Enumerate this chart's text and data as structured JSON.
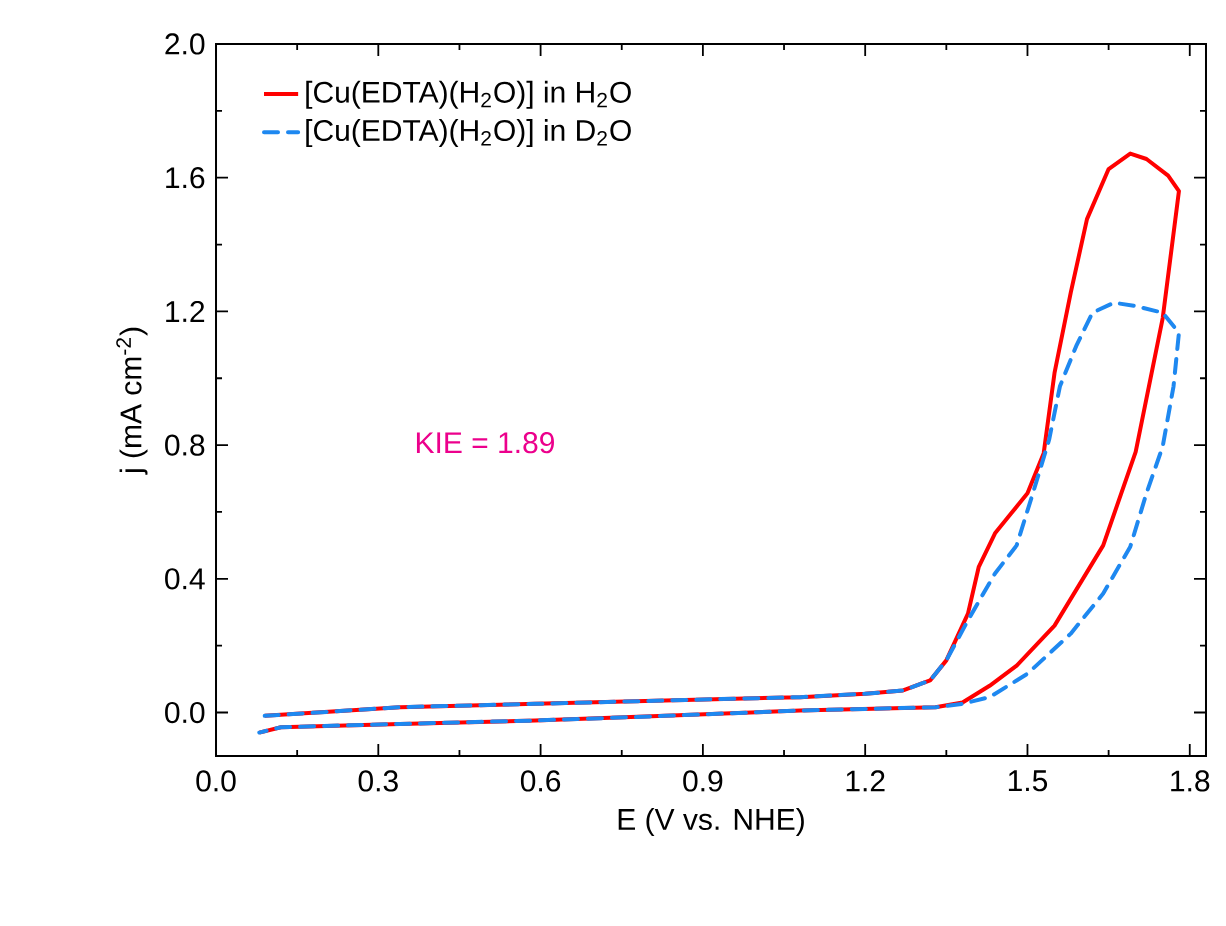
{
  "chart_data": {
    "type": "line",
    "xlabel": "E (V vs. NHE)",
    "ylabel": "j (mA cm$^{-2}$)",
    "xlim": [
      0,
      1.83
    ],
    "ylim": [
      -0.13,
      2.0
    ],
    "xticks": [
      {
        "value": 0,
        "label": "0.0"
      },
      0.3,
      0.6,
      0.9,
      1.2,
      1.5,
      1.8
    ],
    "yticks": [
      {
        "value": 0,
        "label": "0.0"
      },
      0.4,
      0.8,
      1.2,
      1.6,
      {
        "value": 2,
        "label": "2.0"
      }
    ],
    "legend": "top left",
    "grid": false,
    "annotations": [
      "KIE = 1.89"
    ],
    "series": [
      {
        "name": "[Cu(EDTA)(H$_{2}$O)] in H$_{2}$O",
        "color": "#ff0000",
        "line_style": "solid",
        "x": [
          0.09,
          0.34,
          0.59,
          0.83,
          1.08,
          1.2,
          1.27,
          1.32,
          1.35,
          1.39,
          1.41,
          1.44,
          1.47,
          1.5,
          1.53,
          1.55,
          1.58,
          1.61,
          1.65,
          1.69,
          1.72,
          1.76,
          1.78,
          1.75,
          1.7,
          1.64,
          1.55,
          1.48,
          1.43,
          1.38,
          1.33,
          1.08,
          0.83,
          0.59,
          0.34,
          0.12,
          0.08
        ],
        "values": [
          -0.01,
          0.016,
          0.026,
          0.036,
          0.046,
          0.056,
          0.066,
          0.096,
          0.156,
          0.296,
          0.436,
          0.536,
          0.596,
          0.656,
          0.776,
          1.016,
          1.256,
          1.476,
          1.626,
          1.672,
          1.656,
          1.606,
          1.56,
          1.18,
          0.78,
          0.5,
          0.26,
          0.14,
          0.08,
          0.03,
          0.016,
          0.006,
          -0.01,
          -0.024,
          -0.034,
          -0.044,
          -0.06
        ]
      },
      {
        "name": "[Cu(EDTA)(H$_{2}$O)] in D$_{2}$O",
        "color": "#1e88f0",
        "line_style": "dashed",
        "x": [
          0.09,
          0.34,
          0.59,
          0.83,
          1.08,
          1.2,
          1.27,
          1.32,
          1.35,
          1.39,
          1.44,
          1.48,
          1.51,
          1.54,
          1.56,
          1.59,
          1.62,
          1.66,
          1.7,
          1.75,
          1.78,
          1.77,
          1.75,
          1.72,
          1.69,
          1.64,
          1.58,
          1.5,
          1.43,
          1.38,
          1.33,
          1.08,
          0.83,
          0.59,
          0.34,
          0.12,
          0.08
        ],
        "values": [
          -0.01,
          0.016,
          0.026,
          0.036,
          0.046,
          0.056,
          0.066,
          0.096,
          0.156,
          0.276,
          0.416,
          0.5,
          0.656,
          0.816,
          0.976,
          1.096,
          1.196,
          1.226,
          1.216,
          1.196,
          1.136,
          0.976,
          0.796,
          0.656,
          0.496,
          0.356,
          0.236,
          0.116,
          0.046,
          0.026,
          0.016,
          0.006,
          -0.01,
          -0.024,
          -0.034,
          -0.044,
          -0.06
        ]
      }
    ]
  }
}
